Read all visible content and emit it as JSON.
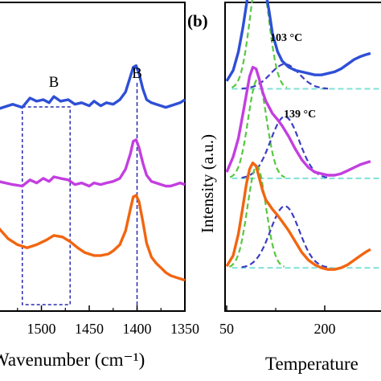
{
  "chart_data": [
    {
      "panel": "a",
      "type": "line",
      "xlabel": "Wavenumber (cm⁻¹)",
      "ylabel": "",
      "x_reversed": true,
      "xlim": [
        1545,
        1350
      ],
      "x_ticks": [
        "1500",
        "1450",
        "1400",
        "1350"
      ],
      "x_tick_values": [
        1500,
        1450,
        1400,
        1350
      ],
      "annotations": [
        {
          "text": "B",
          "x": 1487
        },
        {
          "text": "B",
          "x": 1400
        }
      ],
      "box_region": [
        1520,
        1470
      ],
      "peak_line_x": 1400,
      "series": [
        {
          "color": "#2e4fd6",
          "x": [
            1545,
            1530,
            1520,
            1512,
            1505,
            1498,
            1492,
            1487,
            1480,
            1472,
            1465,
            1458,
            1450,
            1445,
            1438,
            1432,
            1425,
            1418,
            1412,
            1407,
            1404,
            1401,
            1398,
            1394,
            1390,
            1385,
            1380,
            1375,
            1370,
            1365,
            1360,
            1355,
            1350
          ],
          "y": [
            0.655,
            0.67,
            0.66,
            0.69,
            0.68,
            0.685,
            0.675,
            0.695,
            0.68,
            0.685,
            0.67,
            0.675,
            0.665,
            0.68,
            0.665,
            0.675,
            0.67,
            0.685,
            0.71,
            0.76,
            0.79,
            0.795,
            0.77,
            0.72,
            0.685,
            0.675,
            0.67,
            0.665,
            0.66,
            0.665,
            0.67,
            0.675,
            0.685
          ]
        },
        {
          "color": "#c33ee0",
          "x": [
            1545,
            1530,
            1520,
            1512,
            1505,
            1498,
            1492,
            1487,
            1480,
            1472,
            1465,
            1458,
            1450,
            1445,
            1438,
            1432,
            1425,
            1418,
            1412,
            1407,
            1404,
            1401,
            1398,
            1394,
            1390,
            1385,
            1380,
            1375,
            1370,
            1365,
            1360,
            1355,
            1350
          ],
          "y": [
            0.42,
            0.41,
            0.405,
            0.425,
            0.415,
            0.43,
            0.42,
            0.435,
            0.43,
            0.425,
            0.41,
            0.415,
            0.405,
            0.415,
            0.41,
            0.415,
            0.42,
            0.43,
            0.46,
            0.51,
            0.55,
            0.555,
            0.53,
            0.48,
            0.44,
            0.42,
            0.415,
            0.41,
            0.405,
            0.405,
            0.41,
            0.415,
            0.41
          ]
        },
        {
          "color": "#f2650f",
          "x": [
            1545,
            1535,
            1525,
            1515,
            1505,
            1495,
            1487,
            1478,
            1470,
            1462,
            1455,
            1450,
            1445,
            1438,
            1430,
            1425,
            1418,
            1412,
            1407,
            1404,
            1401,
            1398,
            1394,
            1390,
            1385,
            1380,
            1375,
            1370,
            1365,
            1360,
            1355,
            1350
          ],
          "y": [
            0.27,
            0.235,
            0.215,
            0.205,
            0.215,
            0.23,
            0.245,
            0.24,
            0.225,
            0.205,
            0.19,
            0.185,
            0.18,
            0.18,
            0.185,
            0.195,
            0.215,
            0.26,
            0.33,
            0.37,
            0.375,
            0.355,
            0.29,
            0.22,
            0.175,
            0.155,
            0.14,
            0.125,
            0.115,
            0.11,
            0.105,
            0.1
          ]
        }
      ]
    },
    {
      "panel": "b",
      "panel_label": "(b)",
      "type": "line",
      "xlabel": "Temperature",
      "ylabel": "Intensity (a.u.)",
      "xlim": [
        50,
        270
      ],
      "x_ticks": [
        "50",
        "200"
      ],
      "x_tick_values": [
        50,
        200
      ],
      "annotations": [
        {
          "text": "103 °C",
          "x": 103
        },
        {
          "text": "139 °C",
          "x": 139
        }
      ],
      "series": [
        {
          "name": "",
          "color": "#2e4fd6",
          "baseline": 0.72,
          "x": [
            50,
            60,
            68,
            75,
            80,
            85,
            90,
            95,
            100,
            105,
            110,
            115,
            120,
            128,
            135,
            145,
            155,
            165,
            175,
            185,
            195,
            205,
            215,
            225,
            235,
            245,
            255,
            262,
            270
          ],
          "y": [
            0.745,
            0.78,
            0.84,
            0.92,
            0.99,
            1.06,
            1.1,
            1.115,
            1.11,
            1.08,
            1.03,
            0.97,
            0.9,
            0.84,
            0.81,
            0.79,
            0.78,
            0.775,
            0.77,
            0.765,
            0.765,
            0.77,
            0.775,
            0.785,
            0.8,
            0.815,
            0.825,
            0.83,
            0.835
          ]
        },
        {
          "name": "",
          "color": "#c33ee0",
          "baseline": 0.43,
          "x": [
            50,
            60,
            68,
            75,
            80,
            85,
            90,
            95,
            100,
            105,
            110,
            115,
            120,
            128,
            135,
            145,
            155,
            165,
            175,
            185,
            195,
            205,
            215,
            225,
            235,
            245,
            255,
            262,
            270
          ],
          "y": [
            0.45,
            0.5,
            0.56,
            0.64,
            0.7,
            0.76,
            0.79,
            0.785,
            0.75,
            0.71,
            0.68,
            0.66,
            0.64,
            0.62,
            0.6,
            0.565,
            0.525,
            0.49,
            0.465,
            0.45,
            0.445,
            0.44,
            0.44,
            0.445,
            0.455,
            0.465,
            0.475,
            0.48,
            0.485
          ]
        },
        {
          "name": "",
          "color": "#f2650f",
          "baseline": 0.14,
          "x": [
            50,
            60,
            68,
            75,
            80,
            85,
            90,
            95,
            100,
            105,
            110,
            115,
            120,
            128,
            135,
            145,
            155,
            165,
            175,
            185,
            195,
            205,
            215,
            225,
            235,
            245,
            255,
            262,
            270
          ],
          "y": [
            0.145,
            0.18,
            0.25,
            0.34,
            0.41,
            0.46,
            0.48,
            0.47,
            0.43,
            0.39,
            0.36,
            0.345,
            0.33,
            0.31,
            0.29,
            0.26,
            0.225,
            0.19,
            0.165,
            0.15,
            0.14,
            0.135,
            0.135,
            0.14,
            0.15,
            0.165,
            0.18,
            0.19,
            0.2
          ]
        }
      ],
      "fits": [
        {
          "color": "#58c840",
          "style": "dashed",
          "group": 0,
          "center": 100,
          "height": 0.39,
          "width": 14
        },
        {
          "color": "#3d3dc4",
          "style": "dashed",
          "group": 0,
          "center": 139,
          "height": 0.08,
          "width": 22
        },
        {
          "color": "#58c840",
          "style": "dashed",
          "group": 1,
          "center": 97,
          "height": 0.32,
          "width": 14
        },
        {
          "color": "#3d3dc4",
          "style": "dashed",
          "group": 1,
          "center": 139,
          "height": 0.2,
          "width": 22
        },
        {
          "color": "#58c840",
          "style": "dashed",
          "group": 2,
          "center": 96,
          "height": 0.33,
          "width": 14
        },
        {
          "color": "#3d3dc4",
          "style": "dashed",
          "group": 2,
          "center": 139,
          "height": 0.2,
          "width": 22
        }
      ],
      "baselines_color": "#7fe0d8"
    }
  ]
}
